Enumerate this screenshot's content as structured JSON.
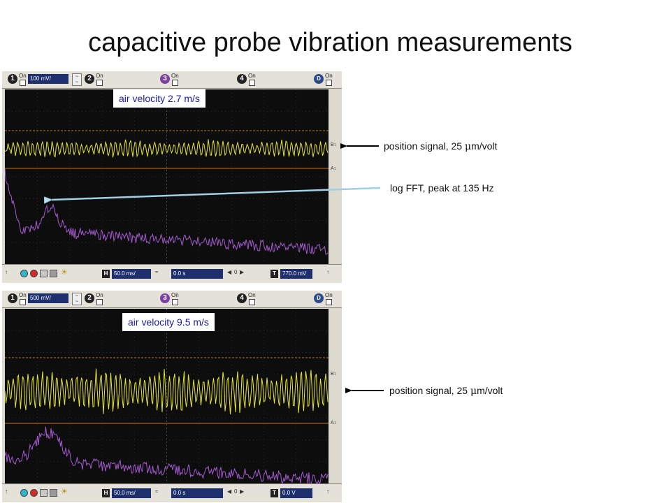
{
  "title": "capacitive probe vibration measurements",
  "scopes": [
    {
      "overlay_label": "air velocity 2.7 m/s",
      "ch1_scale": "100 mV/",
      "channels": [
        "1",
        "2",
        "3",
        "4"
      ],
      "on_label": "On",
      "d_label": "D",
      "time_scale": "50.0 ms/",
      "delay": "0.0 s",
      "trigger_level": "770.0 mV",
      "h_label": "H",
      "t_label": "T",
      "zero_label": "0",
      "strip_labels": [
        "B↕",
        "A↕"
      ],
      "trace_colors": {
        "position": "#e6e633",
        "fft": "#a45ad0",
        "marker": "#c07820"
      }
    },
    {
      "overlay_label": "air velocity 9.5 m/s",
      "ch1_scale": "500 mV/",
      "channels": [
        "1",
        "2",
        "3",
        "4"
      ],
      "on_label": "On",
      "d_label": "D",
      "time_scale": "50.0 ms/",
      "delay": "0.0 s",
      "trigger_level": "0.0 V",
      "h_label": "H",
      "t_label": "T",
      "zero_label": "0",
      "strip_labels": [
        "B↕",
        "A↕"
      ],
      "trace_colors": {
        "position": "#e6e633",
        "fft": "#a45ad0",
        "marker": "#c07820"
      }
    }
  ],
  "annotations": {
    "position_signal_top": {
      "prefix": "position signal, 25 ",
      "mu": "μ",
      "suffix": "m/volt"
    },
    "fft_label": "log FFT, peak at 135 Hz",
    "position_signal_bottom": {
      "prefix": "position signal, 25 ",
      "mu": "μ",
      "suffix": "m/volt"
    }
  },
  "icons": [
    "run-button-icon",
    "stop-button-icon",
    "single-button-icon",
    "print-icon",
    "brightness-icon"
  ]
}
